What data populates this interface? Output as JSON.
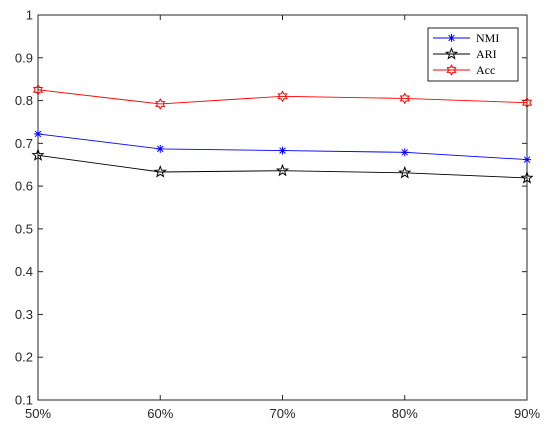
{
  "chart_data": {
    "type": "line",
    "title": "",
    "xlabel": "",
    "ylabel": "",
    "categories": [
      "50%",
      "60%",
      "70%",
      "80%",
      "90%"
    ],
    "ylim": [
      0.1,
      1
    ],
    "yticks": [
      0.1,
      0.2,
      0.3,
      0.4,
      0.5,
      0.6,
      0.7,
      0.8,
      0.9,
      1
    ],
    "ytick_labels": [
      "0.1",
      "0.2",
      "0.3",
      "0.4",
      "0.5",
      "0.6",
      "0.7",
      "0.8",
      "0.9",
      "1"
    ],
    "grid": false,
    "legend_position": "top-right",
    "series": [
      {
        "name": "NMI",
        "color": "#0000ff",
        "marker": "asterisk",
        "values": [
          0.722,
          0.687,
          0.683,
          0.679,
          0.662
        ]
      },
      {
        "name": "ARI",
        "color": "#000000",
        "marker": "pentagram",
        "values": [
          0.672,
          0.633,
          0.636,
          0.631,
          0.619
        ]
      },
      {
        "name": "Acc",
        "color": "#ff0000",
        "marker": "hexagram",
        "values": [
          0.825,
          0.792,
          0.81,
          0.805,
          0.795
        ]
      }
    ]
  }
}
